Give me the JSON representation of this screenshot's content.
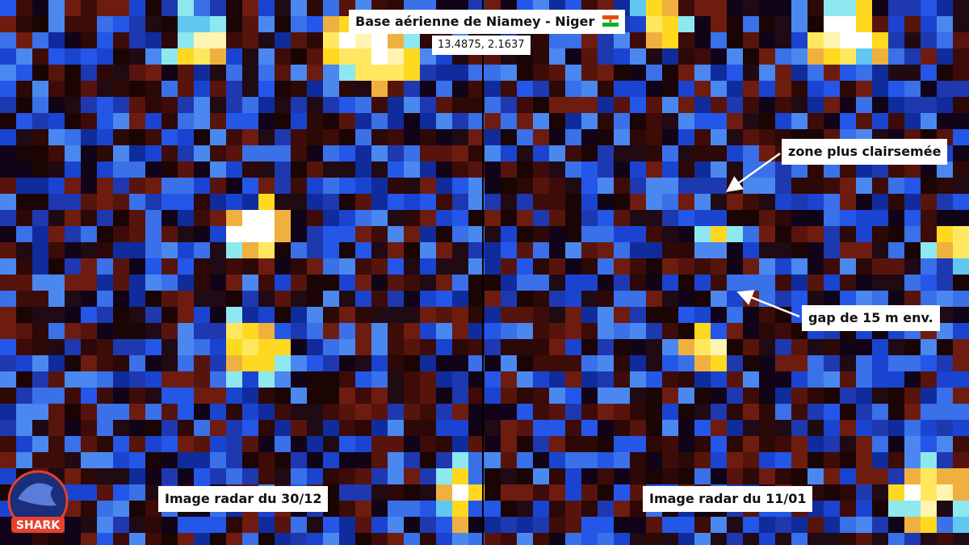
{
  "header": {
    "title": "Base aérienne de Niamey - Niger",
    "coordinates": "13.4875, 2.1637"
  },
  "panels": [
    {
      "label": "Image radar du 30/12"
    },
    {
      "label": "Image radar du 11/01"
    }
  ],
  "annotations": [
    {
      "text": "zone plus clairsemée"
    },
    {
      "text": "gap de 15 m env."
    }
  ],
  "logo": {
    "text": "SHARK"
  }
}
